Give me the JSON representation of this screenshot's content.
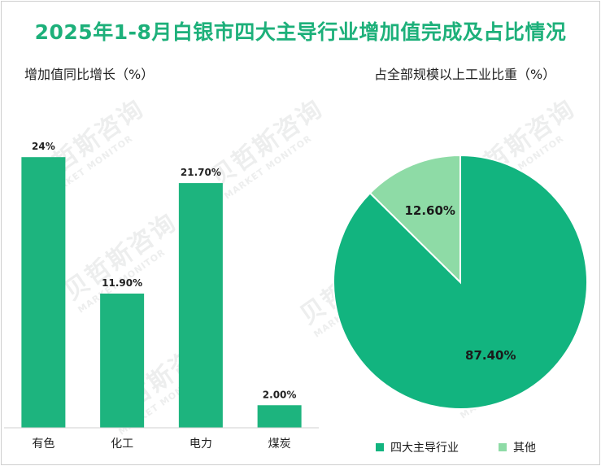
{
  "title": "2025年1-8月白银市四大主导行业增加值完成及占比情况",
  "watermark": {
    "cn": "贝哲斯咨询",
    "en": "MARKET MONITOR"
  },
  "chart_data": [
    {
      "type": "bar",
      "title": "增加值同比增长（%）",
      "categories": [
        "有色",
        "化工",
        "电力",
        "煤炭"
      ],
      "values": [
        24,
        11.9,
        21.7,
        2.0
      ],
      "value_labels": [
        "24%",
        "11.90%",
        "21.70%",
        "2.00%"
      ],
      "ylim": [
        0,
        30
      ],
      "color": "#1db47e",
      "grid": false
    },
    {
      "type": "pie",
      "title": "占全部规模以上工业比重（%）",
      "labels": [
        "四大主导行业",
        "其他"
      ],
      "values": [
        87.4,
        12.6
      ],
      "value_labels": [
        "87.40%",
        "12.60%"
      ],
      "colors": [
        "#12b47f",
        "#8edba6"
      ],
      "legend": "bottom"
    }
  ]
}
